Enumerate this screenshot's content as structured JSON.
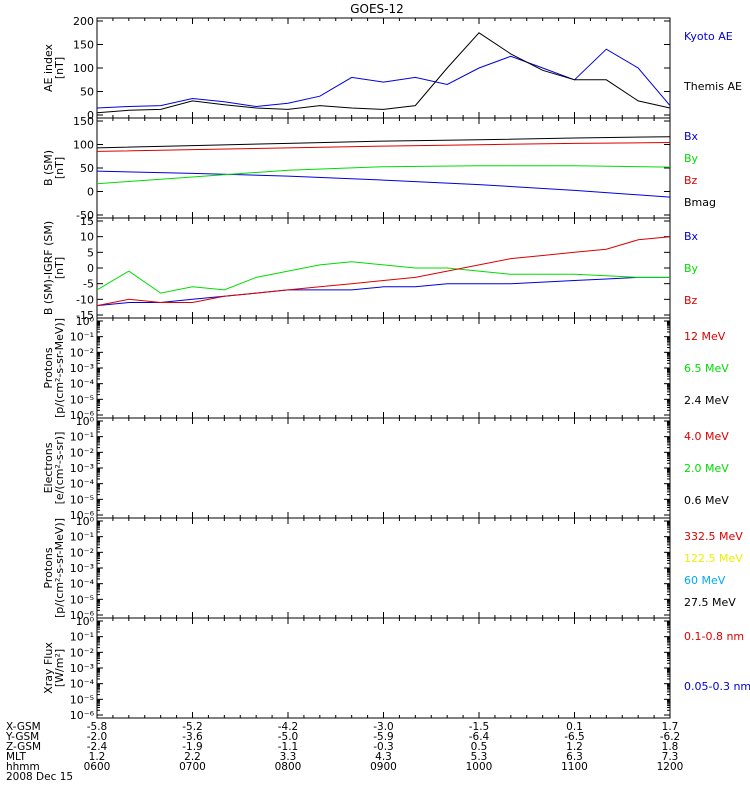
{
  "title": "GOES-12",
  "colors": {
    "black": "#000000",
    "blue": "#0000dd",
    "red": "#dd0000",
    "green": "#00dd00",
    "yellow": "#eeee00",
    "cyan": "#00aaee"
  },
  "panels": [
    {
      "ylabel": [
        "AE index",
        "[nT]"
      ],
      "ticks": [
        "200",
        "150",
        "100",
        "50",
        "0"
      ],
      "legend": [
        {
          "text": "Kyoto AE",
          "color": "blue"
        },
        {
          "text": "Themis AE",
          "color": "black"
        }
      ]
    },
    {
      "ylabel": [
        "B (SM)",
        "[nT]"
      ],
      "ticks": [
        "150",
        "100",
        "50",
        "0",
        "-50"
      ],
      "legend": [
        {
          "text": "Bx",
          "color": "blue"
        },
        {
          "text": "By",
          "color": "green"
        },
        {
          "text": "Bz",
          "color": "red"
        },
        {
          "text": "Bmag",
          "color": "black"
        }
      ]
    },
    {
      "ylabel": [
        "B (SM)-IGRF (SM)",
        "[nT]"
      ],
      "ticks": [
        "15",
        "10",
        "5",
        "0",
        "-5",
        "-10",
        "-15"
      ],
      "legend": [
        {
          "text": "Bx",
          "color": "blue"
        },
        {
          "text": "By",
          "color": "green"
        },
        {
          "text": "Bz",
          "color": "red"
        }
      ]
    },
    {
      "ylabel": [
        "Protons",
        "[p/(cm²-s-sr-MeV)]"
      ],
      "ticks": [
        "10⁰",
        "10⁻¹",
        "10⁻²",
        "10⁻³",
        "10⁻⁴",
        "10⁻⁵",
        "10⁻⁶"
      ],
      "legend": [
        {
          "text": "12 MeV",
          "color": "red"
        },
        {
          "text": "6.5 MeV",
          "color": "green"
        },
        {
          "text": "2.4 MeV",
          "color": "black"
        }
      ]
    },
    {
      "ylabel": [
        "Electrons",
        "[e/(cm²-s-sr)]"
      ],
      "ticks": [
        "10⁰",
        "10⁻¹",
        "10⁻²",
        "10⁻³",
        "10⁻⁴",
        "10⁻⁵",
        "10⁻⁶"
      ],
      "legend": [
        {
          "text": "4.0 MeV",
          "color": "red"
        },
        {
          "text": "2.0 MeV",
          "color": "green"
        },
        {
          "text": "0.6 MeV",
          "color": "black"
        }
      ]
    },
    {
      "ylabel": [
        "Protons",
        "[p/(cm²-s-sr-MeV)]"
      ],
      "ticks": [
        "10⁰",
        "10⁻¹",
        "10⁻²",
        "10⁻³",
        "10⁻⁴",
        "10⁻⁵",
        "10⁻⁶"
      ],
      "legend": [
        {
          "text": "332.5 MeV",
          "color": "red"
        },
        {
          "text": "122.5 MeV",
          "color": "yellow"
        },
        {
          "text": "60 MeV",
          "color": "cyan"
        },
        {
          "text": "27.5 MeV",
          "color": "black"
        }
      ]
    },
    {
      "ylabel": [
        "Xray Flux",
        "[W/m²]"
      ],
      "ticks": [
        "10⁰",
        "10⁻¹",
        "10⁻²",
        "10⁻³",
        "10⁻⁴",
        "10⁻⁵",
        "10⁻⁶"
      ],
      "legend": [
        {
          "text": "0.1-0.8 nm",
          "color": "red"
        },
        {
          "text": "0.05-0.3 nm",
          "color": "blue"
        }
      ]
    }
  ],
  "xaxis": {
    "row_labels": [
      "X-GSM",
      "Y-GSM",
      "Z-GSM",
      "MLT",
      "hhmm"
    ],
    "columns": [
      [
        "-5.8",
        "-2.0",
        "-2.4",
        "1.2",
        "0600"
      ],
      [
        "-5.2",
        "-3.6",
        "-1.9",
        "2.2",
        "0700"
      ],
      [
        "-4.2",
        "-5.0",
        "-1.1",
        "3.3",
        "0800"
      ],
      [
        "-3.0",
        "-5.9",
        "-0.3",
        "4.3",
        "0900"
      ],
      [
        "-1.5",
        "-6.4",
        "0.5",
        "5.3",
        "1000"
      ],
      [
        "0.1",
        "-6.5",
        "1.2",
        "6.3",
        "1100"
      ],
      [
        "1.7",
        "-6.2",
        "1.8",
        "7.3",
        "1200"
      ]
    ],
    "date": "2008 Dec 15"
  },
  "chart_data": [
    {
      "type": "line",
      "title": "GOES-12",
      "ylabel": "AE index [nT]",
      "ylim": [
        0,
        200
      ],
      "x": [
        "06:00",
        "06:20",
        "06:40",
        "07:00",
        "07:20",
        "07:40",
        "08:00",
        "08:20",
        "08:40",
        "09:00",
        "09:20",
        "09:40",
        "10:00",
        "10:20",
        "10:40",
        "11:00",
        "11:20",
        "11:40",
        "12:00"
      ],
      "series": [
        {
          "name": "Kyoto AE",
          "color": "blue",
          "values": [
            15,
            18,
            20,
            35,
            28,
            18,
            25,
            40,
            80,
            70,
            80,
            65,
            100,
            125,
            100,
            75,
            140,
            100,
            20
          ]
        },
        {
          "name": "Themis AE",
          "color": "black",
          "values": [
            5,
            10,
            12,
            30,
            22,
            15,
            12,
            20,
            15,
            12,
            20,
            100,
            175,
            130,
            95,
            75,
            75,
            30,
            15
          ]
        }
      ]
    },
    {
      "type": "line",
      "ylabel": "B (SM) [nT]",
      "ylim": [
        -60,
        150
      ],
      "x": [
        "06:00",
        "07:00",
        "08:00",
        "09:00",
        "10:00",
        "11:00",
        "12:00"
      ],
      "series": [
        {
          "name": "Bx",
          "color": "blue",
          "values": [
            38,
            33,
            27,
            18,
            8,
            -5,
            -20
          ]
        },
        {
          "name": "By",
          "color": "green",
          "values": [
            10,
            25,
            40,
            48,
            50,
            50,
            47
          ]
        },
        {
          "name": "Bz",
          "color": "red",
          "values": [
            82,
            86,
            90,
            94,
            97,
            100,
            102
          ]
        },
        {
          "name": "Bmag",
          "color": "black",
          "values": [
            90,
            95,
            100,
            105,
            108,
            112,
            115
          ]
        }
      ]
    },
    {
      "type": "line",
      "ylabel": "B (SM)-IGRF (SM) [nT]",
      "ylim": [
        -15,
        15
      ],
      "x": [
        "06:00",
        "06:20",
        "06:40",
        "07:00",
        "07:20",
        "07:40",
        "08:00",
        "08:20",
        "08:40",
        "09:00",
        "09:20",
        "09:40",
        "10:00",
        "10:20",
        "10:40",
        "11:00",
        "11:20",
        "11:40",
        "12:00"
      ],
      "series": [
        {
          "name": "Bx",
          "color": "blue",
          "values": [
            -12,
            -11,
            -11,
            -10,
            -9,
            -8,
            -7,
            -7,
            -7,
            -6,
            -6,
            -5,
            -5,
            -5,
            -4.5,
            -4,
            -3.5,
            -3,
            -3
          ]
        },
        {
          "name": "By",
          "color": "green",
          "values": [
            -7,
            -1,
            -8,
            -6,
            -7,
            -3,
            -1,
            1,
            2,
            1,
            0,
            0,
            -1,
            -2,
            -2,
            -2,
            -2.5,
            -3,
            -3
          ]
        },
        {
          "name": "Bz",
          "color": "red",
          "values": [
            -12,
            -10,
            -11,
            -11,
            -9,
            -8,
            -7,
            -6,
            -5,
            -4,
            -3,
            -1,
            1,
            3,
            4,
            5,
            6,
            9,
            10
          ]
        }
      ]
    }
  ]
}
